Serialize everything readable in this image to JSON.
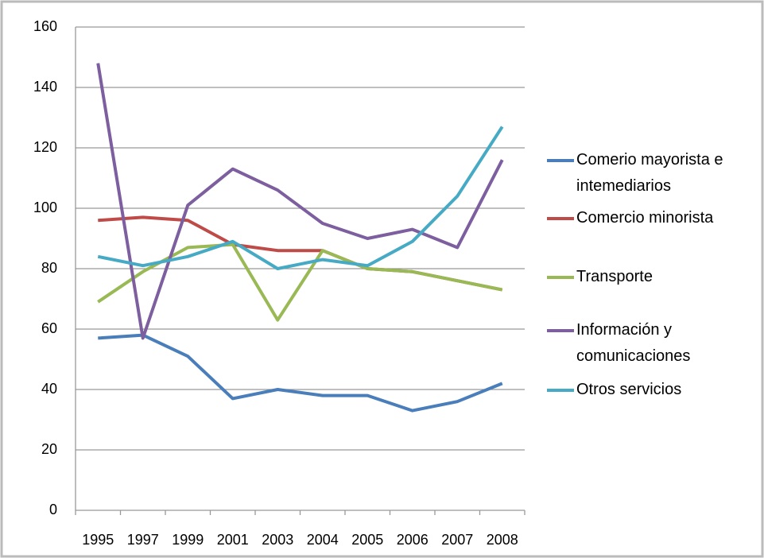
{
  "chart_data": {
    "type": "line",
    "categories": [
      "1995",
      "1997",
      "1999",
      "2001",
      "2003",
      "2004",
      "2005",
      "2006",
      "2007",
      "2008"
    ],
    "series": [
      {
        "name": "Comerio mayorista e intemediarios",
        "color": "#4a7ebb",
        "values": [
          57,
          58,
          51,
          37,
          40,
          38,
          38,
          33,
          36,
          42
        ]
      },
      {
        "name": "Comercio minorista",
        "color": "#be4b48",
        "values": [
          96,
          97,
          96,
          88,
          86,
          86,
          80,
          79,
          76,
          73
        ]
      },
      {
        "name": "Transporte",
        "color": "#98b954",
        "values": [
          69,
          79,
          87,
          88,
          63,
          86,
          80,
          79,
          76,
          73
        ]
      },
      {
        "name": "Información y comunicaciones",
        "color": "#7d5fa0",
        "values": [
          148,
          57,
          101,
          113,
          106,
          95,
          90,
          93,
          87,
          116
        ]
      },
      {
        "name": "Otros servicios",
        "color": "#46aac5",
        "values": [
          84,
          81,
          84,
          89,
          80,
          83,
          81,
          89,
          104,
          127
        ]
      }
    ],
    "ylim": [
      0,
      160
    ],
    "yticks": [
      0,
      20,
      40,
      60,
      80,
      100,
      120,
      140,
      160
    ],
    "grid": true,
    "legend": "right"
  }
}
